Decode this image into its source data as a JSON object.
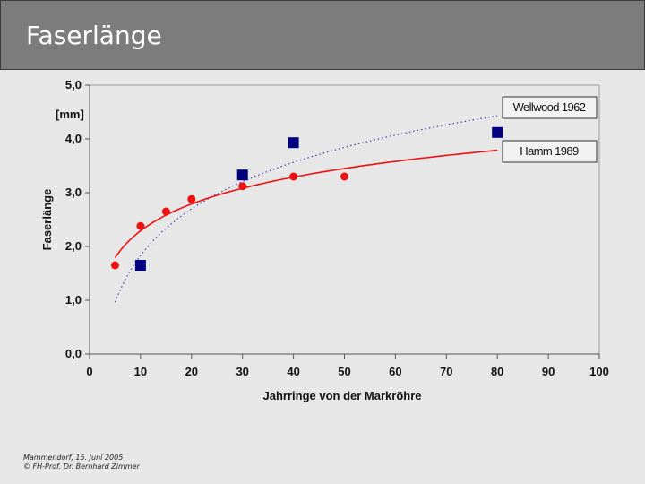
{
  "slide": {
    "title": "Faserlänge",
    "footer_line1": "Mammendorf, 15. Juni 2005",
    "footer_line2": "© FH-Prof. Dr. Bernhard Zimmer"
  },
  "colors": {
    "hamm": "#ee1111",
    "wellwood": "#000080",
    "wellwood_curve": "#3a3aa8"
  },
  "chart_data": {
    "type": "scatter",
    "title": "",
    "xlabel": "Jahrringe von der Markröhre",
    "ylabel": "Faserlänge",
    "y_unit": "[mm]",
    "xlim": [
      0,
      100
    ],
    "ylim": [
      0,
      5
    ],
    "x_ticks": [
      "0",
      "10",
      "20",
      "30",
      "40",
      "50",
      "60",
      "70",
      "80",
      "90",
      "100"
    ],
    "y_ticks": [
      "0,0",
      "1,0",
      "2,0",
      "3,0",
      "4,0",
      "5,0"
    ],
    "grid": false,
    "legend_position": "top-right",
    "series": [
      {
        "name": "Wellwood 1962",
        "marker": "square",
        "points": [
          {
            "x": 10,
            "y": 1.65
          },
          {
            "x": 30,
            "y": 3.33
          },
          {
            "x": 40,
            "y": 3.93
          },
          {
            "x": 80,
            "y": 4.12
          }
        ],
        "trend": "logarithmic, dotted",
        "trend_range": [
          5,
          80
        ]
      },
      {
        "name": "Hamm 1989",
        "marker": "circle",
        "points": [
          {
            "x": 5,
            "y": 1.65
          },
          {
            "x": 10,
            "y": 2.38
          },
          {
            "x": 15,
            "y": 2.65
          },
          {
            "x": 20,
            "y": 2.88
          },
          {
            "x": 30,
            "y": 3.12
          },
          {
            "x": 40,
            "y": 3.3
          },
          {
            "x": 50,
            "y": 3.3
          }
        ],
        "trend": "logarithmic, solid",
        "trend_range": [
          5,
          80
        ]
      }
    ]
  }
}
